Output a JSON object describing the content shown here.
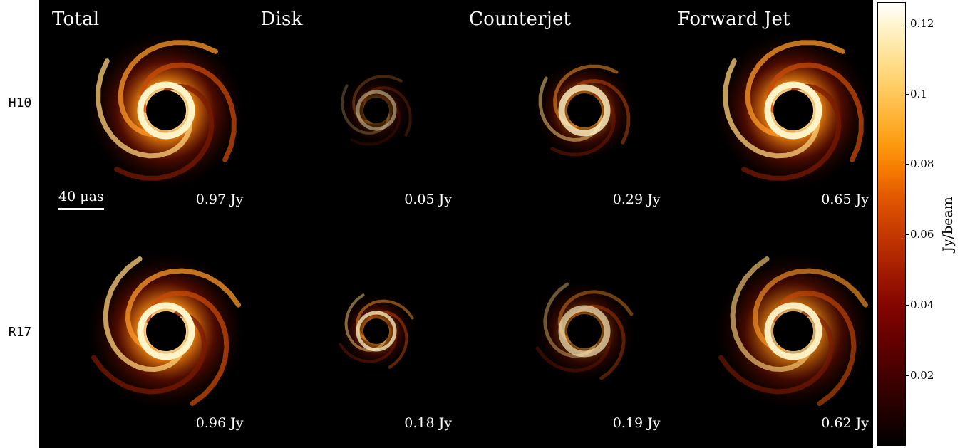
{
  "figure": {
    "columns": [
      "Total",
      "Disk",
      "Counterjet",
      "Forward Jet"
    ],
    "rows": [
      {
        "label": "H10",
        "fluxes": [
          "0.97 Jy",
          "0.05 Jy",
          "0.29 Jy",
          "0.65 Jy"
        ]
      },
      {
        "label": "R17",
        "fluxes": [
          "0.96 Jy",
          "0.18 Jy",
          "0.19 Jy",
          "0.62 Jy"
        ]
      }
    ],
    "scale_bar": {
      "label": "40 μas"
    },
    "colorbar": {
      "label": "Jy/beam",
      "ticks": [
        "0.02",
        "0.04",
        "0.06",
        "0.08",
        "0.1",
        "0.12"
      ],
      "tick_values": [
        0.02,
        0.04,
        0.06,
        0.08,
        0.1,
        0.12
      ],
      "range": [
        0,
        0.126
      ],
      "colormap": "afmhot"
    },
    "panel_brightness": [
      [
        1.0,
        0.35,
        0.7,
        1.0
      ],
      [
        1.0,
        0.65,
        0.55,
        0.85
      ]
    ],
    "background_color": "#000000"
  }
}
